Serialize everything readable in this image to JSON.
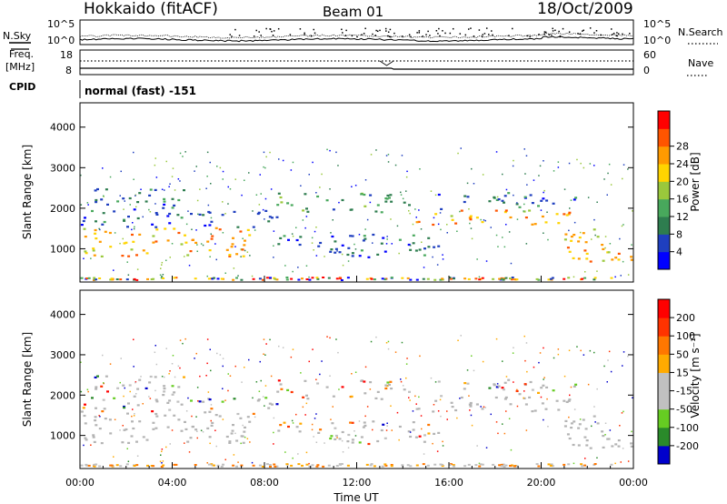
{
  "header": {
    "station": "Hokkaido (fitACF)",
    "beam": "Beam 01",
    "date": "18/Oct/2009"
  },
  "status_panels": {
    "nsky_label": "N.Sky",
    "nsearch_label": "N.Search",
    "noise_ticks": [
      "10^5",
      "10^0"
    ],
    "freq_label_1": "Freq.",
    "freq_label_2": "[MHz]",
    "freq_ticks": [
      "18",
      "8"
    ],
    "nave_label": "Nave",
    "nave_ticks": [
      "60",
      "0"
    ],
    "cpid_label": "CPID",
    "cpid_value": "normal (fast) -151"
  },
  "colors": {
    "power": [
      "#0000ff",
      "#1f3fbf",
      "#2e7d4f",
      "#48a85c",
      "#9ac83c",
      "#ffd400",
      "#ff9a00",
      "#ff5500",
      "#ff0000"
    ],
    "velocity": [
      "#0000cc",
      "#2a8a2a",
      "#66cc22",
      "#c0c0c0",
      "#c0c0c0",
      "#ffaa00",
      "#ff7700",
      "#ff3300",
      "#ff0000"
    ],
    "ground_scatter": "#b4b4b4"
  },
  "chart_data": [
    {
      "type": "heatmap",
      "name": "power",
      "ylabel": "Slant Range [km]",
      "y_ticks": [
        "1000",
        "2000",
        "3000",
        "4000"
      ],
      "ylim": [
        180,
        4600
      ],
      "colorbar_label": "Power [dB]",
      "colorbar_ticks": [
        "4",
        "8",
        "12",
        "16",
        "20",
        "24",
        "28"
      ],
      "scatter_bands": [
        {
          "t0": 0,
          "t1": 7.5,
          "range0": 800,
          "range1": 1550,
          "power_db": 26
        },
        {
          "t0": 0,
          "t1": 8.5,
          "range0": 1550,
          "range1": 2000,
          "power_db": 10
        },
        {
          "t0": 0,
          "t1": 4.5,
          "range0": 2000,
          "range1": 2500,
          "power_db": 8
        },
        {
          "t0": 8.5,
          "t1": 14.5,
          "range0": 1900,
          "range1": 2400,
          "power_db": 14
        },
        {
          "t0": 8.5,
          "t1": 15.5,
          "range0": 800,
          "range1": 1400,
          "power_db": 10
        },
        {
          "t0": 14.5,
          "t1": 21.5,
          "range0": 1600,
          "range1": 2000,
          "power_db": 26
        },
        {
          "t0": 15.5,
          "t1": 21.5,
          "range0": 2000,
          "range1": 2400,
          "power_db": 10
        },
        {
          "t0": 21,
          "t1": 24,
          "range0": 700,
          "range1": 1600,
          "power_db": 24
        }
      ]
    },
    {
      "type": "heatmap",
      "name": "velocity",
      "ylabel": "Slant Range [km]",
      "y_ticks": [
        "1000",
        "2000",
        "3000",
        "4000"
      ],
      "ylim": [
        180,
        4600
      ],
      "colorbar_label": "Velocity [m s⁻¹]",
      "colorbar_ticks": [
        "200",
        "100",
        "50",
        "15",
        "-15",
        "-50",
        "-100",
        "-200"
      ],
      "xlabel": "Time UT",
      "x_ticks": [
        "00:00",
        "04:00",
        "08:00",
        "12:00",
        "16:00",
        "20:00",
        "00:00"
      ],
      "xlim": [
        0,
        24
      ]
    }
  ]
}
